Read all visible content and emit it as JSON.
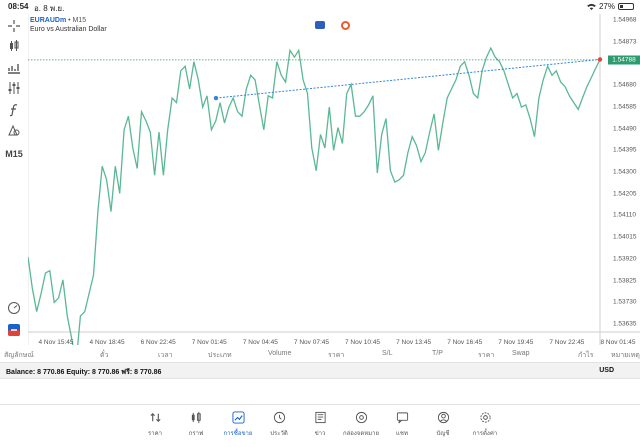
{
  "status_bar": {
    "time": "08:54",
    "date": "อ. 8 พ.ย.",
    "battery": "27%"
  },
  "toolbar": {
    "timeframe_label": "M15"
  },
  "chart": {
    "symbol": "EURAUDm",
    "timeframe": "M15",
    "description": "Euro vs Australian Dollar",
    "current_price": "1.54788",
    "line_color": "#5ab894",
    "trendline_color": "#2e86de",
    "bid_line_color": "#2d9b6f"
  },
  "chart_data": {
    "type": "line",
    "series": [
      {
        "values": [
          1.5392,
          1.5378,
          1.5368,
          1.5376,
          1.5385,
          1.5386,
          1.5372,
          1.5374,
          1.5382,
          1.5366,
          1.5356,
          1.5345,
          1.5366,
          1.5368,
          1.5376,
          1.5384,
          1.5412,
          1.5432,
          1.5426,
          1.5412,
          1.5432,
          1.542,
          1.5448,
          1.5454,
          1.544,
          1.5431,
          1.5456,
          1.5452,
          1.5447,
          1.5428,
          1.5447,
          1.5428,
          1.5448,
          1.5462,
          1.546,
          1.5474,
          1.5476,
          1.5466,
          1.5478,
          1.547,
          1.5458,
          1.5463,
          1.5448,
          1.5452,
          1.546,
          1.5451,
          1.5458,
          1.5462,
          1.5456,
          1.5454,
          1.5466,
          1.5472,
          1.547,
          1.5459,
          1.5448,
          1.5463,
          1.5462,
          1.5478,
          1.5472,
          1.5469,
          1.5483,
          1.548,
          1.5483,
          1.547,
          1.5464,
          1.544,
          1.543,
          1.5446,
          1.544,
          1.5458,
          1.5439,
          1.5449,
          1.5442,
          1.5464,
          1.5468,
          1.5454,
          1.5454,
          1.5456,
          1.5459,
          1.5463,
          1.5429,
          1.5446,
          1.5453,
          1.543,
          1.5425,
          1.5426,
          1.5428,
          1.5438,
          1.5445,
          1.5441,
          1.5434,
          1.5438,
          1.5447,
          1.5455,
          1.5439,
          1.5451,
          1.5462,
          1.5466,
          1.547,
          1.5476,
          1.5478,
          1.5472,
          1.5464,
          1.5462,
          1.5474,
          1.548,
          1.5484,
          1.548,
          1.5478,
          1.5474,
          1.5468,
          1.5462,
          1.5464,
          1.5458,
          1.5459,
          1.5453,
          1.5445,
          1.5462,
          1.547,
          1.5476,
          1.5472,
          1.5474,
          1.5469,
          1.5467,
          1.5463,
          1.546,
          1.5457,
          1.5462,
          1.5467,
          1.5471,
          1.5475,
          1.5479
        ]
      }
    ],
    "y_ticks": [
      "1.54968",
      "1.54873",
      "1.54788",
      "1.54680",
      "1.54585",
      "1.54490",
      "1.54395",
      "1.54300",
      "1.54205",
      "1.54110",
      "1.54015",
      "1.53920",
      "1.53825",
      "1.53730",
      "1.53635"
    ],
    "x_ticks": [
      "4 Nov 15:45",
      "4 Nov 18:45",
      "6 Nov 22:45",
      "7 Nov 01:45",
      "7 Nov 04:45",
      "7 Nov 07:45",
      "7 Nov 10:45",
      "7 Nov 13:45",
      "7 Nov 16:45",
      "7 Nov 19:45",
      "7 Nov 22:45",
      "8 Nov 01:45"
    ],
    "ylim": [
      1.5359,
      1.5499
    ],
    "grid": false,
    "trendline": {
      "start_value": 1.5462,
      "end_value": 1.5479
    }
  },
  "table": {
    "columns": [
      "สัญลักษณ์",
      "ตั๋ว",
      "เวลา",
      "ประเภท",
      "Volume",
      "ราคา",
      "S/L",
      "T/P",
      "ราคา",
      "Swap",
      "กำไร",
      "หมายเหตุ"
    ]
  },
  "account": {
    "balance_text": "Balance: 8 770.86 Equity: 8 770.86 ฟรี: 8 770.86",
    "currency": "USD"
  },
  "nav": {
    "items": [
      {
        "label": "ราคา",
        "icon": "quotes-icon"
      },
      {
        "label": "กราฟ",
        "icon": "chart-icon"
      },
      {
        "label": "การซื้อขาย",
        "icon": "trade-icon",
        "active": true
      },
      {
        "label": "ประวัติ",
        "icon": "history-icon"
      },
      {
        "label": "ข่าว",
        "icon": "news-icon"
      },
      {
        "label": "กล่องจดหมาย",
        "icon": "mailbox-icon"
      },
      {
        "label": "แชท",
        "icon": "chat-icon"
      },
      {
        "label": "บัญชี",
        "icon": "account-icon"
      },
      {
        "label": "การตั้งค่า",
        "icon": "settings-icon"
      }
    ],
    "active_color": "#1a62c9"
  }
}
